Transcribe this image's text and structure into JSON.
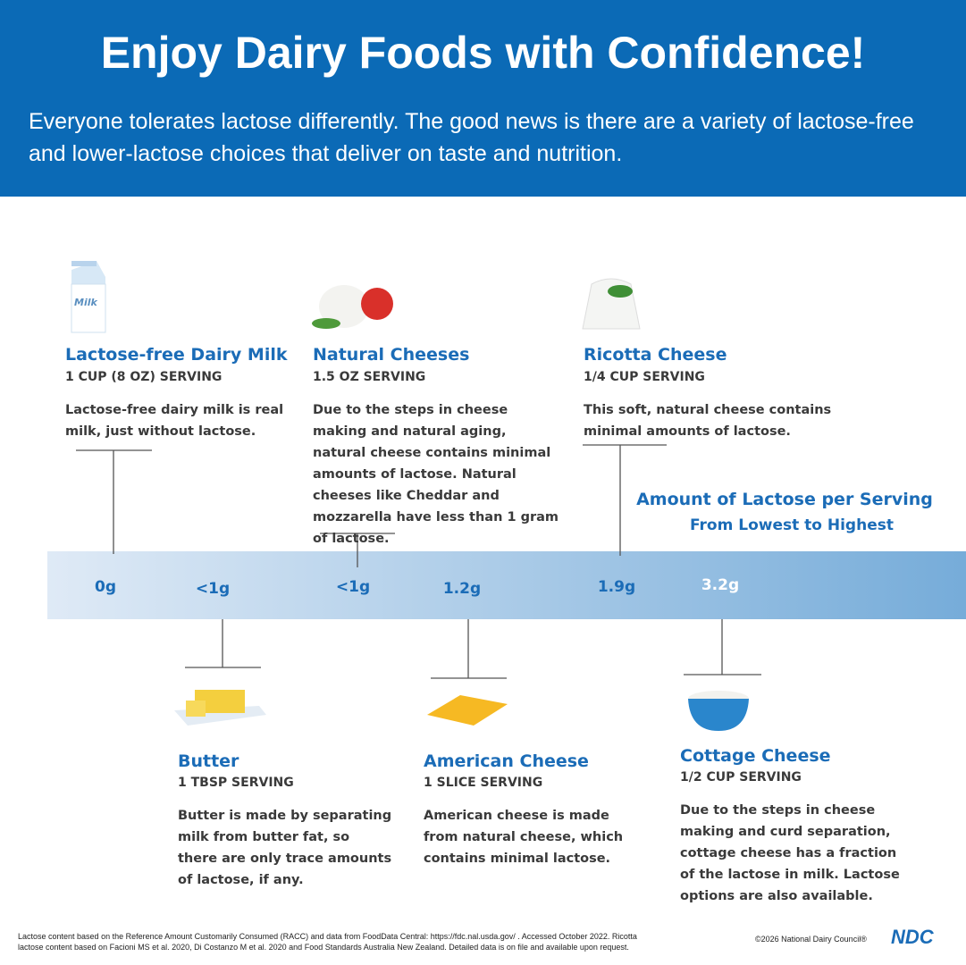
{
  "header": {
    "title": "Enjoy Dairy Foods with Confidence!",
    "subtitle": "Everyone tolerates lactose differently. The good news is there are a variety of lactose-free and lower-lactose choices that deliver on taste and nutrition."
  },
  "scale": {
    "title": "Amount of Lactose per Serving",
    "subtitle": "From Lowest to Highest"
  },
  "items": [
    {
      "name": "Lactose-free Dairy Milk",
      "serving": "1 CUP (8 OZ) SERVING",
      "description": "Lactose-free dairy milk is real milk, just without lactose.",
      "amount": "0g",
      "icon_label": "Milk"
    },
    {
      "name": "Butter",
      "serving": "1 TBSP SERVING",
      "description": "Butter is made by separating milk from butter fat, so there are only trace amounts of lactose, if any.",
      "amount": "<1g"
    },
    {
      "name": "Natural Cheeses",
      "serving": "1.5 OZ SERVING",
      "description": "Due to the steps in cheese making and natural aging, natural cheese contains minimal amounts of lactose. Natural cheeses like Cheddar and mozzarella have less than 1 gram of lactose.",
      "amount": "<1g"
    },
    {
      "name": "American Cheese",
      "serving": "1 SLICE SERVING",
      "description": "American cheese is made from natural cheese, which contains minimal lactose.",
      "amount": "1.2g"
    },
    {
      "name": "Ricotta Cheese",
      "serving": "1/4 CUP SERVING",
      "description": "This soft, natural cheese contains minimal amounts of lactose.",
      "amount": "1.9g"
    },
    {
      "name": "Cottage Cheese",
      "serving": "1/2 CUP SERVING",
      "description": "Due to the steps in cheese making and curd separation, cottage cheese has a fraction of the lactose in milk. Lactose options are also available.",
      "amount": "3.2g"
    }
  ],
  "footer": {
    "note": [
      "Lactose content based on the Reference Amount Customarily Consumed (RACC) and data from FoodData Central: https://fdc.nal.usda.gov/ . Accessed October 2022. Ricotta",
      "lactose content based on Facioni MS et al. 2020, Di Costanzo M et al. 2020 and Food Standards Australia New Zealand.  Detailed data is on file and available upon request."
    ],
    "copyright": "©2026 National Dairy Council®",
    "logo": "NDC"
  }
}
